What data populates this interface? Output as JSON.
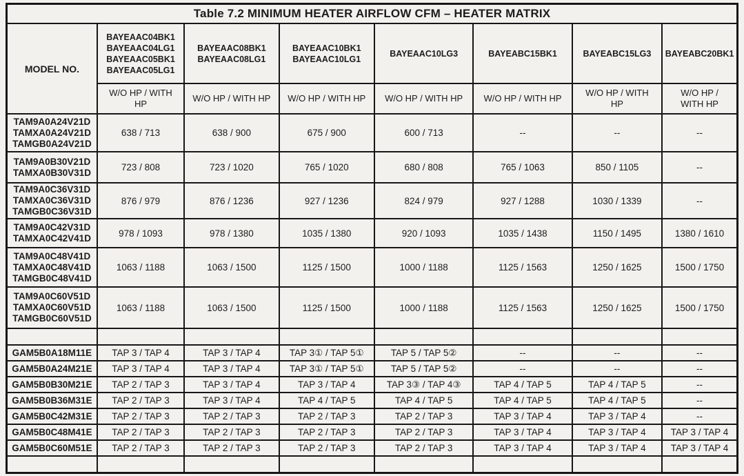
{
  "title": "Table 7.2 MINIMUM HEATER AIRFLOW CFM – HEATER MATRIX",
  "table": {
    "model_col_header": "MODEL NO.",
    "heater_columns": [
      {
        "models": [
          "BAYEAAC04BK1",
          "BAYEAAC04LG1",
          "BAYEAAC05BK1",
          "BAYEAAC05LG1"
        ],
        "subheader": "W/O HP / WITH HP"
      },
      {
        "models": [
          "BAYEAAC08BK1",
          "BAYEAAC08LG1"
        ],
        "subheader": "W/O HP / WITH HP"
      },
      {
        "models": [
          "BAYEAAC10BK1",
          "BAYEAAC10LG1"
        ],
        "subheader": "W/O HP / WITH HP"
      },
      {
        "models": [
          "BAYEAAC10LG3"
        ],
        "subheader": "W/O HP / WITH HP"
      },
      {
        "models": [
          "BAYEABC15BK1"
        ],
        "subheader": "W/O HP / WITH HP"
      },
      {
        "models": [
          "BAYEABC15LG3"
        ],
        "subheader": "W/O HP / WITH HP"
      },
      {
        "models": [
          "BAYEABC20BK1"
        ],
        "subheader": "W/O HP / WITH HP"
      }
    ],
    "rows": [
      {
        "models": [
          "TAM9A0A24V21D",
          "TAMXA0A24V21D",
          "TAMGB0A24V21D"
        ],
        "values": [
          "638 / 713",
          "638 / 900",
          "675 / 900",
          "600 / 713",
          "--",
          "--",
          "--"
        ]
      },
      {
        "models": [
          "TAM9A0B30V21D",
          "TAMXA0B30V31D"
        ],
        "values": [
          "723 / 808",
          "723 / 1020",
          "765 / 1020",
          "680 / 808",
          "765 / 1063",
          "850 / 1105",
          "--"
        ]
      },
      {
        "models": [
          "TAM9A0C36V31D",
          "TAMXA0C36V31D",
          "TAMGB0C36V31D"
        ],
        "values": [
          "876 / 979",
          "876 / 1236",
          "927 / 1236",
          "824 / 979",
          "927 / 1288",
          "1030 / 1339",
          "--"
        ]
      },
      {
        "models": [
          "TAM9A0C42V31D",
          "TAMXA0C42V41D"
        ],
        "values": [
          "978 / 1093",
          "978 / 1380",
          "1035 / 1380",
          "920 / 1093",
          "1035 / 1438",
          "1150 / 1495",
          "1380 / 1610"
        ]
      },
      {
        "models": [
          "TAM9A0C48V41D",
          "TAMXA0C48V41D",
          "TAMGB0C48V41D"
        ],
        "values": [
          "1063 / 1188",
          "1063 / 1500",
          "1125 / 1500",
          "1000 / 1188",
          "1125 / 1563",
          "1250 / 1625",
          "1500 / 1750"
        ]
      },
      {
        "models": [
          "TAM9A0C60V51D",
          "TAMXA0C60V51D",
          "TAMGB0C60V51D"
        ],
        "values": [
          "1063 / 1188",
          "1063 / 1500",
          "1125 / 1500",
          "1000 / 1188",
          "1125 / 1563",
          "1250 / 1625",
          "1500 / 1750"
        ]
      },
      {
        "spacer": true,
        "models": [],
        "values": [
          "",
          "",
          "",
          "",
          "",
          "",
          ""
        ]
      },
      {
        "models": [
          "GAM5B0A18M11E"
        ],
        "values": [
          "TAP 3 / TAP 4",
          "TAP 3 / TAP 4",
          "TAP 3① / TAP 5①",
          "TAP 5 / TAP 5②",
          "--",
          "--",
          "--"
        ]
      },
      {
        "models": [
          "GAM5B0A24M21E"
        ],
        "values": [
          "TAP 3 / TAP 4",
          "TAP 3 / TAP 4",
          "TAP 3① / TAP 5①",
          "TAP 5 / TAP 5②",
          "--",
          "--",
          "--"
        ]
      },
      {
        "models": [
          "GAM5B0B30M21E"
        ],
        "values": [
          "TAP 2 / TAP 3",
          "TAP 3 / TAP 4",
          "TAP 3 / TAP 4",
          "TAP 3③ / TAP 4③",
          "TAP 4 / TAP 5",
          "TAP 4 / TAP 5",
          "--"
        ]
      },
      {
        "models": [
          "GAM5B0B36M31E"
        ],
        "values": [
          "TAP 2 / TAP 3",
          "TAP 3 / TAP 4",
          "TAP 4 / TAP 5",
          "TAP 4 / TAP 5",
          "TAP 4 / TAP 5",
          "TAP 4 / TAP 5",
          "--"
        ]
      },
      {
        "models": [
          "GAM5B0C42M31E"
        ],
        "values": [
          "TAP 2 / TAP 3",
          "TAP 2 / TAP 3",
          "TAP 2 / TAP 3",
          "TAP 2 / TAP 3",
          "TAP 3 / TAP 4",
          "TAP 3 / TAP 4",
          "--"
        ]
      },
      {
        "models": [
          "GAM5B0C48M41E"
        ],
        "values": [
          "TAP 2 / TAP 3",
          "TAP 2 / TAP 3",
          "TAP 2 / TAP 3",
          "TAP 2 / TAP 3",
          "TAP 3 / TAP 4",
          "TAP 3 / TAP 4",
          "TAP 3 / TAP 4"
        ]
      },
      {
        "models": [
          "GAM5B0C60M51E"
        ],
        "values": [
          "TAP 2 / TAP 3",
          "TAP 2 / TAP 3",
          "TAP 2 / TAP 3",
          "TAP 2 / TAP 3",
          "TAP 3 / TAP 4",
          "TAP 3 / TAP 4",
          "TAP 3 / TAP 4"
        ]
      },
      {
        "spacer": true,
        "models": [],
        "values": [
          "",
          "",
          "",
          "",
          "",
          "",
          ""
        ]
      }
    ]
  }
}
